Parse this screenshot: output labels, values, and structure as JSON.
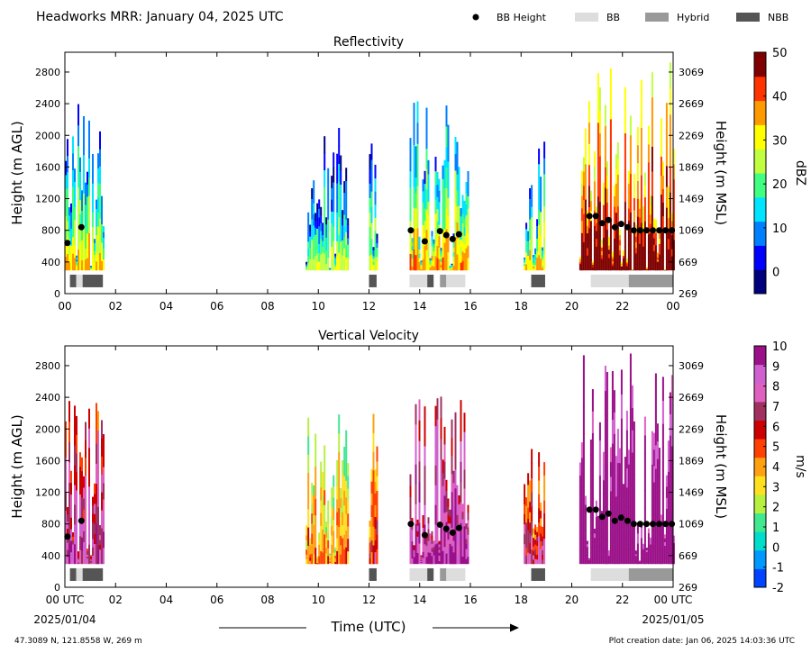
{
  "header": {
    "title": "Headworks MRR:  January 04, 2025 UTC",
    "legend": [
      {
        "label": "BB Height",
        "kind": "dot",
        "color": "#000000"
      },
      {
        "label": "BB",
        "kind": "bar",
        "color": "#dddddd"
      },
      {
        "label": "Hybrid",
        "kind": "bar",
        "color": "#999999"
      },
      {
        "label": "NBB",
        "kind": "bar",
        "color": "#555555"
      }
    ]
  },
  "footer": {
    "location": "47.3089 N, 121.8558 W, 269 m",
    "creation_date": "Plot creation date: Jan 06, 2025 14:03:36 UTC",
    "xlabel": "Time (UTC)",
    "start_date": "2025/01/04",
    "end_date": "2025/01/05"
  },
  "chart_data": [
    {
      "type": "heatmap",
      "title": "Reflectivity",
      "ylabel": "Height (m AGL)",
      "ylabel_right": "Height (m MSL)",
      "xlim": [
        0,
        24
      ],
      "ylim": [
        0,
        3050
      ],
      "x_ticks": [
        "00",
        "02",
        "04",
        "06",
        "08",
        "10",
        "12",
        "14",
        "16",
        "18",
        "20",
        "22",
        "00"
      ],
      "y_ticks": [
        0,
        400,
        800,
        1200,
        1600,
        2000,
        2400,
        2800
      ],
      "y_ticks_right": [
        269,
        669,
        1069,
        1469,
        1869,
        2269,
        2669,
        3069
      ],
      "colorbar": {
        "label": "dBZ",
        "range": [
          -5,
          50
        ],
        "ticks": [
          0,
          10,
          20,
          30,
          40,
          50
        ],
        "colors": [
          "#00007f",
          "#0000ff",
          "#0080ff",
          "#00e5ff",
          "#40ff80",
          "#c0ff40",
          "#ffff00",
          "#ff9900",
          "#ff3300",
          "#7f0000"
        ]
      },
      "precip_periods": [
        {
          "start": 0.0,
          "end": 1.5,
          "top": 2400,
          "level": 0.15
        },
        {
          "start": 9.5,
          "end": 11.2,
          "top": 2200,
          "level": 0.05
        },
        {
          "start": 12.0,
          "end": 12.3,
          "top": 2300,
          "level": 0.1
        },
        {
          "start": 13.6,
          "end": 15.9,
          "top": 2500,
          "level": 0.2
        },
        {
          "start": 18.1,
          "end": 18.9,
          "top": 2000,
          "level": 0.15
        },
        {
          "start": 20.3,
          "end": 24.0,
          "top": 3000,
          "level": 0.55
        }
      ],
      "bb_height": {
        "x": [
          0.1,
          0.65,
          13.65,
          14.2,
          14.8,
          15.05,
          15.3,
          15.55,
          20.7,
          20.95,
          21.2,
          21.45,
          21.7,
          21.95,
          22.2,
          22.45,
          22.7,
          22.95,
          23.2,
          23.45,
          23.7,
          23.95
        ],
        "y": [
          640,
          840,
          800,
          660,
          790,
          740,
          690,
          750,
          980,
          980,
          890,
          930,
          840,
          880,
          840,
          800,
          800,
          800,
          800,
          800,
          800,
          800
        ]
      },
      "bb_type": [
        {
          "start": 0.2,
          "end": 0.45,
          "type": "NBB"
        },
        {
          "start": 0.45,
          "end": 0.7,
          "type": "BB"
        },
        {
          "start": 0.7,
          "end": 1.5,
          "type": "NBB"
        },
        {
          "start": 12.0,
          "end": 12.3,
          "type": "NBB"
        },
        {
          "start": 13.6,
          "end": 14.3,
          "type": "BB"
        },
        {
          "start": 14.3,
          "end": 14.55,
          "type": "NBB"
        },
        {
          "start": 14.8,
          "end": 15.05,
          "type": "Hybrid"
        },
        {
          "start": 15.05,
          "end": 15.8,
          "type": "BB"
        },
        {
          "start": 18.4,
          "end": 18.95,
          "type": "NBB"
        },
        {
          "start": 20.75,
          "end": 22.25,
          "type": "BB"
        },
        {
          "start": 22.25,
          "end": 24.0,
          "type": "Hybrid"
        }
      ]
    },
    {
      "type": "heatmap",
      "title": "Vertical Velocity",
      "ylabel": "Height (m AGL)",
      "ylabel_right": "Height (m MSL)",
      "xlim": [
        0,
        24
      ],
      "ylim": [
        0,
        3050
      ],
      "x_ticks": [
        "00 UTC",
        "02",
        "04",
        "06",
        "08",
        "10",
        "12",
        "14",
        "16",
        "18",
        "20",
        "22",
        "00 UTC"
      ],
      "y_ticks": [
        0,
        400,
        800,
        1200,
        1600,
        2000,
        2400,
        2800
      ],
      "y_ticks_right": [
        269,
        669,
        1069,
        1469,
        1869,
        2269,
        2669,
        3069
      ],
      "colorbar": {
        "label": "m/s",
        "range": [
          -2,
          10
        ],
        "ticks": [
          -2,
          -1,
          0,
          1,
          2,
          3,
          4,
          5,
          6,
          7,
          8,
          9,
          10
        ],
        "colors": [
          "#0044ff",
          "#0099ff",
          "#00ddcc",
          "#40e890",
          "#b8f040",
          "#ffe020",
          "#ffa010",
          "#ff4000",
          "#cc0000",
          "#a03060",
          "#e060c0",
          "#d060d0",
          "#9a1088"
        ]
      },
      "precip_periods": [
        {
          "start": 0.0,
          "end": 1.5,
          "top": 2400,
          "level": 0.6
        },
        {
          "start": 9.5,
          "end": 11.2,
          "top": 2200,
          "level": 0.3
        },
        {
          "start": 12.0,
          "end": 12.3,
          "top": 2300,
          "level": 0.4
        },
        {
          "start": 13.6,
          "end": 15.9,
          "top": 2500,
          "level": 0.7
        },
        {
          "start": 18.1,
          "end": 18.9,
          "top": 2000,
          "level": 0.5
        },
        {
          "start": 20.3,
          "end": 24.0,
          "top": 3000,
          "level": 0.9
        }
      ],
      "bb_height": {
        "x": [
          0.1,
          0.65,
          13.65,
          14.2,
          14.8,
          15.05,
          15.3,
          15.55,
          20.7,
          20.95,
          21.2,
          21.45,
          21.7,
          21.95,
          22.2,
          22.45,
          22.7,
          22.95,
          23.2,
          23.45,
          23.7,
          23.95
        ],
        "y": [
          640,
          840,
          800,
          660,
          790,
          740,
          690,
          750,
          980,
          980,
          890,
          930,
          840,
          880,
          840,
          800,
          800,
          800,
          800,
          800,
          800,
          800
        ]
      },
      "bb_type": [
        {
          "start": 0.2,
          "end": 0.45,
          "type": "NBB"
        },
        {
          "start": 0.45,
          "end": 0.7,
          "type": "BB"
        },
        {
          "start": 0.7,
          "end": 1.5,
          "type": "NBB"
        },
        {
          "start": 12.0,
          "end": 12.3,
          "type": "NBB"
        },
        {
          "start": 13.6,
          "end": 14.3,
          "type": "BB"
        },
        {
          "start": 14.3,
          "end": 14.55,
          "type": "NBB"
        },
        {
          "start": 14.8,
          "end": 15.05,
          "type": "Hybrid"
        },
        {
          "start": 15.05,
          "end": 15.8,
          "type": "BB"
        },
        {
          "start": 18.4,
          "end": 18.95,
          "type": "NBB"
        },
        {
          "start": 20.75,
          "end": 22.25,
          "type": "BB"
        },
        {
          "start": 22.25,
          "end": 24.0,
          "type": "Hybrid"
        }
      ]
    }
  ]
}
